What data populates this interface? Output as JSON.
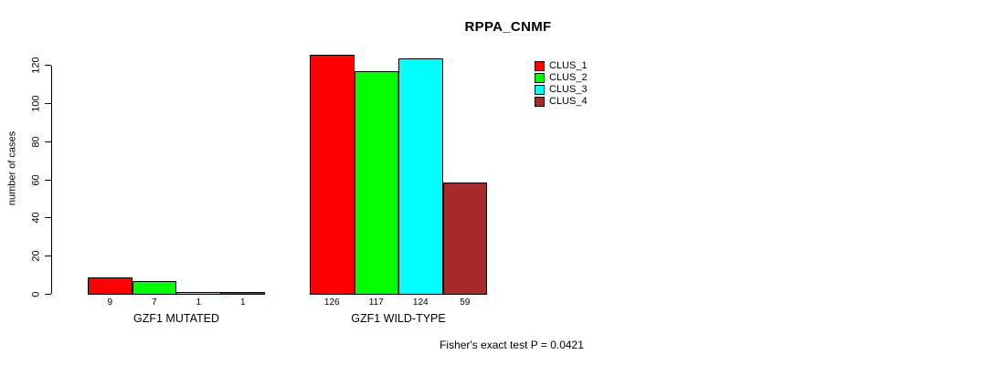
{
  "title": "RPPA_CNMF",
  "background": "#ffffff",
  "axis_color": "#000000",
  "chart_data": {
    "type": "bar",
    "title": "RPPA_CNMF",
    "xlabel": "",
    "ylabel": "number of cases",
    "categories": [
      "GZF1 MUTATED",
      "GZF1 WILD-TYPE"
    ],
    "series": [
      {
        "name": "CLUS_1",
        "color": "#ff0000",
        "values": [
          9,
          126
        ]
      },
      {
        "name": "CLUS_2",
        "color": "#00ff00",
        "values": [
          7,
          117
        ]
      },
      {
        "name": "CLUS_3",
        "color": "#00ffff",
        "values": [
          1,
          124
        ]
      },
      {
        "name": "CLUS_4",
        "color": "#a52a2a",
        "values": [
          1,
          59
        ]
      }
    ],
    "bar_value_labels": [
      [
        "9",
        "7",
        "1",
        "1"
      ],
      [
        "126",
        "117",
        "124",
        "59"
      ]
    ],
    "yticks": [
      0,
      20,
      40,
      60,
      80,
      100,
      120
    ],
    "ylim": [
      0,
      126
    ],
    "grid": false,
    "legend_position": "upper-right",
    "legend_entries": [
      "CLUS_1",
      "CLUS_2",
      "CLUS_3",
      "CLUS_4"
    ],
    "annotation": "Fisher's exact test P = 0.0421"
  }
}
